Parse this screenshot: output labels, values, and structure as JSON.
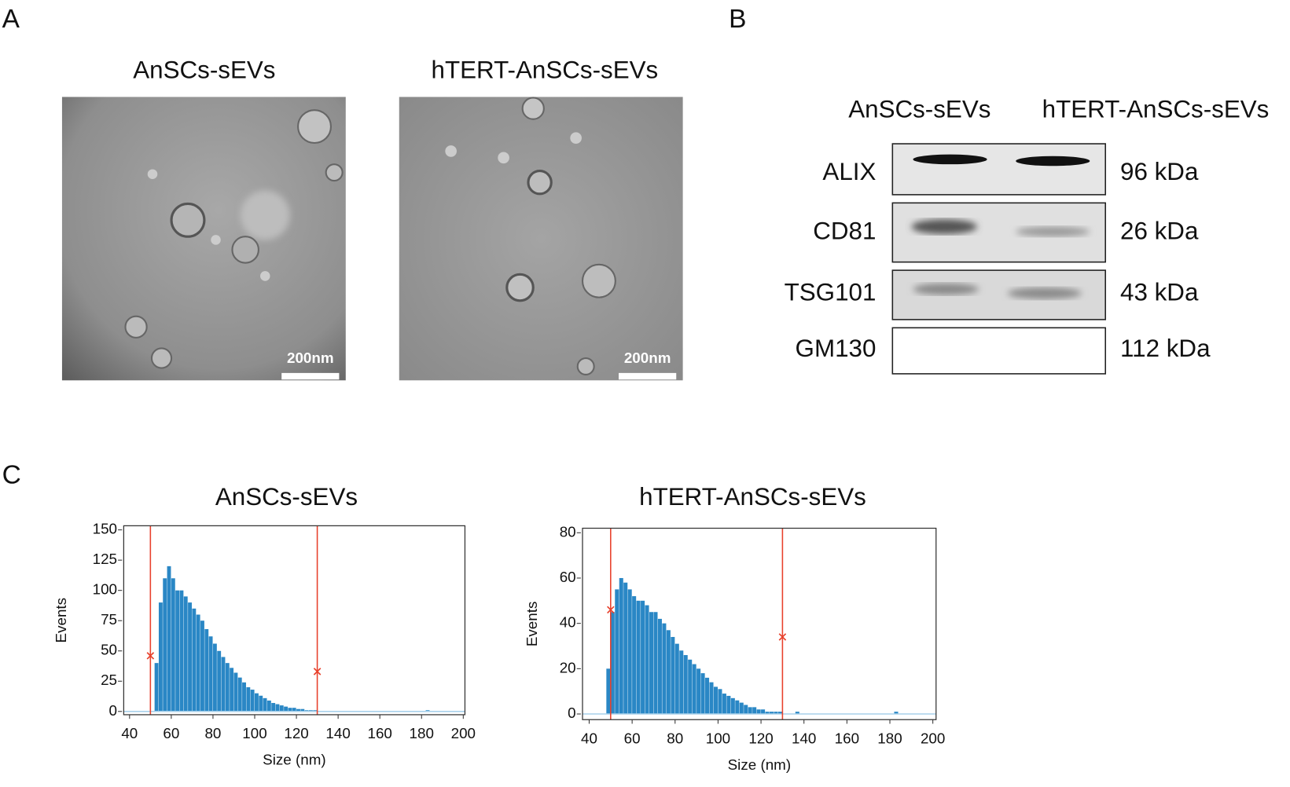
{
  "panel_labels": [
    "A",
    "B",
    "C"
  ],
  "tem": {
    "images": [
      {
        "title": "AnSCs-sEVs",
        "scale_bar": "200nm"
      },
      {
        "title": "hTERT-AnSCs-sEVs",
        "scale_bar": "200nm"
      }
    ]
  },
  "western_blot": {
    "columns": [
      "AnSCs-sEVs",
      "hTERT-AnSCs-sEVs"
    ],
    "rows": [
      {
        "protein": "ALIX",
        "size": "96 kDa"
      },
      {
        "protein": "CD81",
        "size": "26 kDa"
      },
      {
        "protein": "TSG101",
        "size": "43 kDa"
      },
      {
        "protein": "GM130",
        "size": "112 kDa"
      }
    ]
  },
  "chart_data": [
    {
      "type": "histogram",
      "title": "AnSCs-sEVs",
      "xlabel": "Size (nm)",
      "ylabel": "Events",
      "color": "#2a87c5",
      "bins": [
        40,
        42,
        44,
        46,
        48,
        50,
        52,
        54,
        56,
        58,
        60,
        62,
        64,
        66,
        68,
        70,
        72,
        74,
        76,
        78,
        80,
        82,
        84,
        86,
        88,
        90,
        92,
        94,
        96,
        98,
        100,
        102,
        104,
        106,
        108,
        110,
        112,
        114,
        116,
        118,
        120,
        122,
        124,
        126,
        128,
        130,
        132,
        134,
        136,
        138,
        140,
        142,
        144,
        146,
        148,
        150,
        152,
        154,
        156,
        158,
        160,
        162,
        164,
        166,
        168,
        170,
        172,
        174,
        176,
        178,
        180,
        182,
        184,
        186,
        188,
        190,
        192,
        194,
        196,
        198,
        200
      ],
      "values": [
        0,
        0,
        0,
        0,
        0,
        0,
        40,
        90,
        110,
        120,
        110,
        100,
        100,
        95,
        90,
        85,
        80,
        75,
        68,
        62,
        56,
        50,
        45,
        40,
        36,
        32,
        28,
        24,
        20,
        18,
        15,
        13,
        11,
        9,
        7,
        6,
        5,
        4,
        3,
        3,
        2,
        2,
        1,
        1,
        1,
        0,
        0,
        0,
        0,
        0,
        0,
        0,
        0,
        0,
        0,
        0,
        0,
        0,
        0,
        0,
        0,
        0,
        0,
        0,
        0,
        0,
        0,
        0,
        0,
        0,
        0,
        1,
        0,
        0,
        0,
        0,
        0,
        0,
        0,
        0
      ],
      "xlim": [
        37.2,
        200.8
      ],
      "ylim": [
        -2.7,
        153.4
      ],
      "xticks": [
        40,
        60,
        80,
        100,
        120,
        140,
        160,
        180,
        200
      ],
      "yticks": [
        0,
        25,
        50,
        75,
        100,
        125,
        150
      ],
      "cursors": {
        "x": [
          50,
          130
        ],
        "y": [
          46,
          33
        ]
      },
      "cursor_color": "#e8412c"
    },
    {
      "type": "histogram",
      "title": "hTERT-AnSCs-sEVs",
      "xlabel": "Size (nm)",
      "ylabel": "Events",
      "color": "#2a87c5",
      "bins": [
        40,
        42,
        44,
        46,
        48,
        50,
        52,
        54,
        56,
        58,
        60,
        62,
        64,
        66,
        68,
        70,
        72,
        74,
        76,
        78,
        80,
        82,
        84,
        86,
        88,
        90,
        92,
        94,
        96,
        98,
        100,
        102,
        104,
        106,
        108,
        110,
        112,
        114,
        116,
        118,
        120,
        122,
        124,
        126,
        128,
        130,
        132,
        134,
        136,
        138,
        140,
        142,
        144,
        146,
        148,
        150,
        152,
        154,
        156,
        158,
        160,
        162,
        164,
        166,
        168,
        170,
        172,
        174,
        176,
        178,
        180,
        182,
        184,
        186,
        188,
        190,
        192,
        194,
        196,
        198,
        200
      ],
      "values": [
        0,
        0,
        0,
        0,
        20,
        45,
        55,
        60,
        58,
        55,
        52,
        50,
        50,
        48,
        45,
        45,
        42,
        40,
        37,
        34,
        31,
        28,
        26,
        24,
        22,
        20,
        18,
        16,
        14,
        12,
        11,
        9,
        8,
        7,
        6,
        5,
        4,
        3,
        3,
        2,
        2,
        1,
        1,
        1,
        1,
        0,
        0,
        0,
        1,
        0,
        0,
        0,
        0,
        0,
        0,
        0,
        0,
        0,
        0,
        0,
        0,
        0,
        0,
        0,
        0,
        0,
        0,
        0,
        0,
        0,
        0,
        1,
        0,
        0,
        0,
        0,
        0,
        0,
        0,
        0
      ],
      "xlim": [
        36.9,
        201.5
      ],
      "ylim": [
        -2.5,
        82
      ],
      "xticks": [
        40,
        60,
        80,
        100,
        120,
        140,
        160,
        180,
        200
      ],
      "yticks": [
        0,
        20,
        40,
        60,
        80
      ],
      "cursors": {
        "x": [
          50,
          130
        ],
        "y": [
          46,
          34
        ]
      },
      "cursor_color": "#e8412c"
    }
  ]
}
